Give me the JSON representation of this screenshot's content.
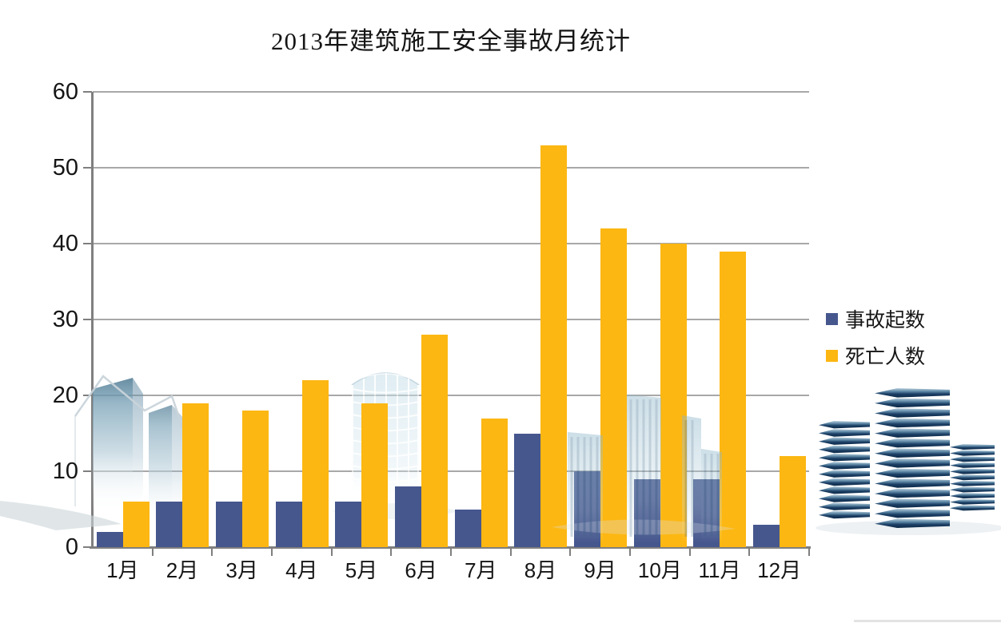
{
  "chart_data": {
    "type": "bar",
    "title": "2013年建筑施工安全事故月统计",
    "categories": [
      "1月",
      "2月",
      "3月",
      "4月",
      "5月",
      "6月",
      "7月",
      "8月",
      "9月",
      "10月",
      "11月",
      "12月"
    ],
    "series": [
      {
        "name": "事故起数",
        "color": "#46578e",
        "values": [
          2,
          6,
          6,
          6,
          6,
          8,
          5,
          15,
          10,
          9,
          9,
          3
        ]
      },
      {
        "name": "死亡人数",
        "color": "#fcb712",
        "values": [
          6,
          19,
          18,
          22,
          19,
          28,
          17,
          53,
          42,
          40,
          39,
          12
        ]
      }
    ],
    "xlabel": "",
    "ylabel": "",
    "ylim": [
      0,
      60
    ],
    "yticks": [
      0,
      10,
      20,
      30,
      40,
      50,
      60
    ],
    "grid": true,
    "legend_position": "right"
  },
  "colors": {
    "background": "#ffffff",
    "gridline": "#a8a8a8",
    "axis": "#7f7f7f",
    "text": "#151515"
  },
  "decorations": {
    "watermarks": [
      "left-glass-towers",
      "cylindrical-glass-tower",
      "city-skyline"
    ],
    "right_graphic": "stacked-slab-office-towers",
    "bottom_right_strip_color": "#e3e3e3"
  }
}
